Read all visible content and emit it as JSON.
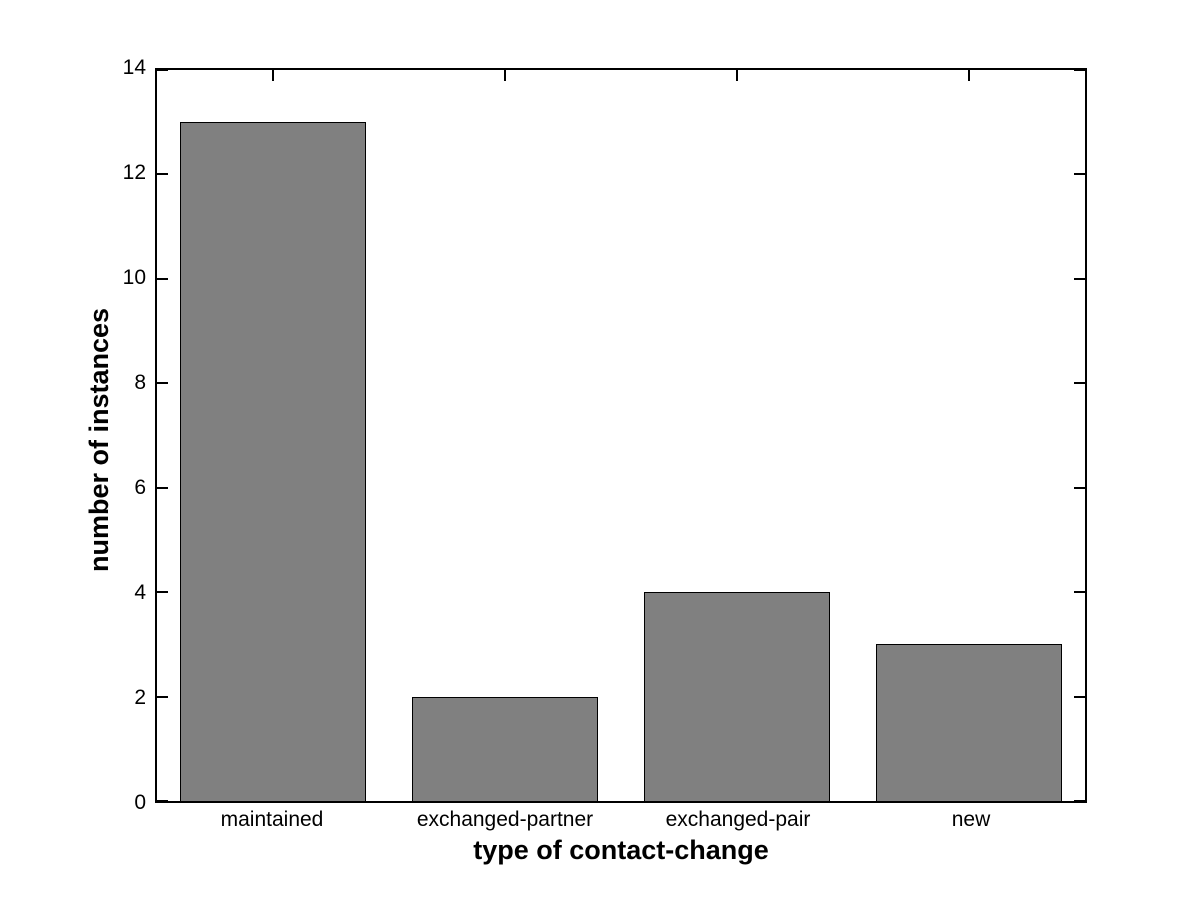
{
  "chart_data": {
    "type": "bar",
    "categories": [
      "maintained",
      "exchanged-partner",
      "exchanged-pair",
      "new"
    ],
    "values": [
      13,
      2,
      4,
      3
    ],
    "title": "",
    "xlabel": "type of contact-change",
    "ylabel": "number of instances",
    "ylim": [
      0,
      14
    ],
    "yticks": [
      0,
      2,
      4,
      6,
      8,
      10,
      12,
      14
    ],
    "bar_width_fraction": 0.8,
    "bar_color": "#808080",
    "bar_edge_color": "#000000",
    "axis_color": "#000000",
    "background_color": "#ffffff",
    "grid": false,
    "legend": null,
    "tick_direction": "in",
    "box": true
  }
}
